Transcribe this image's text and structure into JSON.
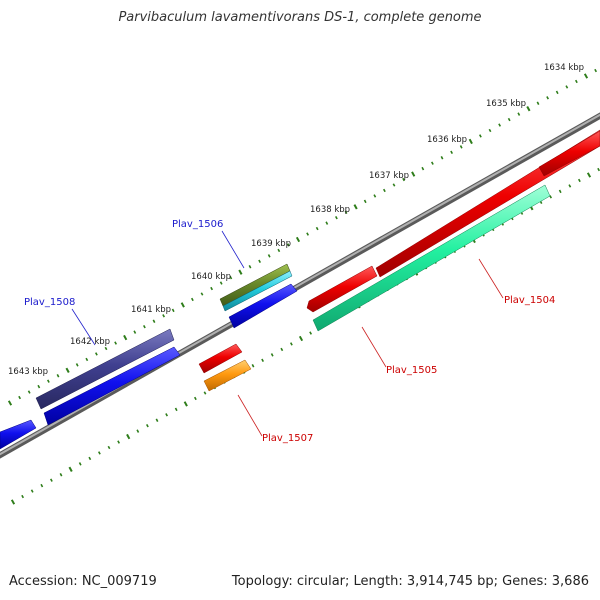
{
  "title": "Parvibaculum lavamentivorans DS-1, complete genome",
  "footer": {
    "accession": "Accession: NC_009719",
    "topology": "Topology: circular; Length: 3,914,745 bp; Genes: 3,686"
  },
  "colors": {
    "backbone": "#7a7a7a",
    "tick_outer": "#2e7d1a",
    "label_link": "#1a1aff",
    "label_red": "#cc0000",
    "gene_red": "#ee0000",
    "gene_blue": "#1010ee",
    "gene_slate": "#404090",
    "gene_olive": "#6a8a2a",
    "gene_cyan": "#22ccdd",
    "gene_teal": "#22f0a0",
    "gene_orange": "#ff9910"
  },
  "ticks": [
    {
      "label": "1634 kbp"
    },
    {
      "label": "1635 kbp"
    },
    {
      "label": "1636 kbp"
    },
    {
      "label": "1637 kbp"
    },
    {
      "label": "1638 kbp"
    },
    {
      "label": "1639 kbp"
    },
    {
      "label": "1640 kbp"
    },
    {
      "label": "1641 kbp"
    },
    {
      "label": "1642 kbp"
    },
    {
      "label": "1643 kbp"
    }
  ],
  "gene_labels": [
    {
      "name": "Plav_1506",
      "color": "#1a1acc"
    },
    {
      "name": "Plav_1508",
      "color": "#1a1acc"
    },
    {
      "name": "Plav_1504",
      "color": "#cc0000"
    },
    {
      "name": "Plav_1505",
      "color": "#cc0000"
    },
    {
      "name": "Plav_1507",
      "color": "#cc0000"
    }
  ]
}
